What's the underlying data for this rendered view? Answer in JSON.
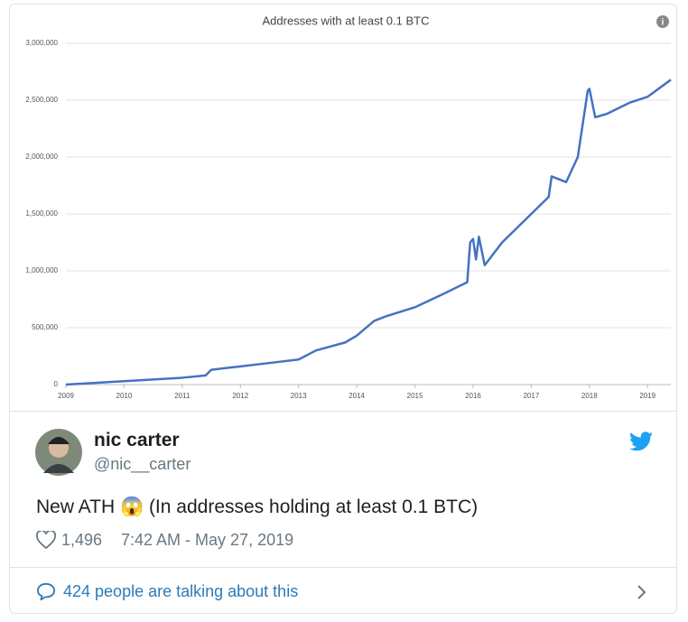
{
  "chart_data": {
    "type": "line",
    "title": "Addresses with at least 0.1 BTC",
    "x": [
      2009,
      2009.5,
      2010,
      2010.5,
      2011,
      2011.4,
      2011.5,
      2012,
      2012.5,
      2013,
      2013.3,
      2013.8,
      2014,
      2014.3,
      2014.5,
      2015,
      2015.5,
      2015.9,
      2015.95,
      2016,
      2016.05,
      2016.1,
      2016.2,
      2016.5,
      2017,
      2017.3,
      2017.35,
      2017.6,
      2017.8,
      2017.97,
      2018,
      2018.1,
      2018.3,
      2018.7,
      2019,
      2019.4
    ],
    "series": [
      {
        "name": "Addresses",
        "color": "#4472c4",
        "values": [
          0,
          15000,
          30000,
          45000,
          60000,
          80000,
          130000,
          160000,
          190000,
          220000,
          300000,
          370000,
          430000,
          560000,
          600000,
          680000,
          800000,
          900000,
          1250000,
          1280000,
          1100000,
          1300000,
          1050000,
          1250000,
          1500000,
          1650000,
          1830000,
          1780000,
          2000000,
          2580000,
          2600000,
          2350000,
          2380000,
          2480000,
          2530000,
          2680000
        ]
      }
    ],
    "xlim": [
      2009,
      2019.4
    ],
    "xticks": [
      2009,
      2010,
      2011,
      2012,
      2013,
      2014,
      2015,
      2016,
      2017,
      2018,
      2019
    ],
    "ylim": [
      0,
      3000000
    ],
    "yticks": [
      0,
      {
        "value": 500000,
        "label": "500,000"
      },
      {
        "value": 1000000,
        "label": "1,000,000"
      },
      {
        "value": 1500000,
        "label": "1,500,000"
      },
      {
        "value": 2000000,
        "label": "2,000,000"
      },
      {
        "value": 2500000,
        "label": "2,500,000"
      },
      {
        "value": 3000000,
        "label": "3,000,000"
      }
    ],
    "grid": true
  },
  "tweet": {
    "name": "nic carter",
    "handle": "@nic__carter",
    "text": "New ATH 😱 (In addresses holding at least 0.1 BTC)",
    "likes": "1,496",
    "timestamp": "7:42 AM - May 27, 2019",
    "footer": "424 people are talking about this"
  }
}
